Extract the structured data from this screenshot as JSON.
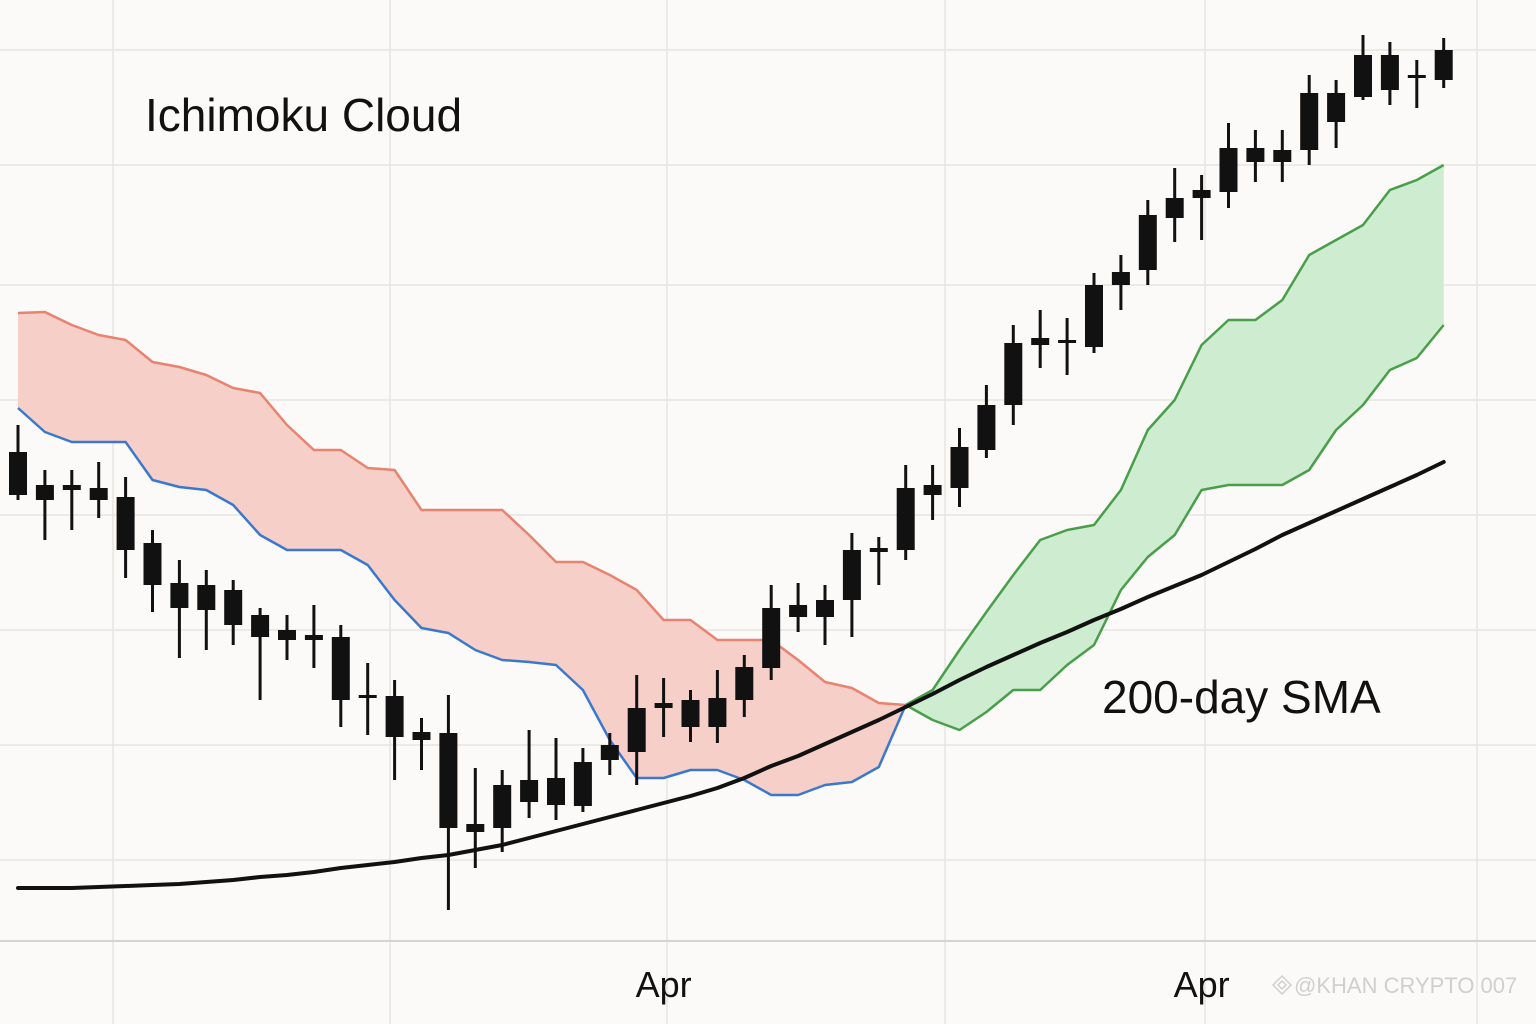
{
  "chart_data": {
    "type": "candlestick",
    "title": "Ichimoku Cloud",
    "annotation": "200-day SMA",
    "watermark": "@KHAN CRYPTO 007",
    "categories": [
      null,
      null,
      null,
      null,
      null,
      null,
      null,
      null,
      null,
      null,
      null,
      null,
      null,
      null,
      null,
      null,
      null,
      null,
      null,
      null,
      null,
      null,
      null,
      null,
      "Apr",
      null,
      null,
      null,
      null,
      null,
      null,
      null,
      null,
      null,
      null,
      null,
      null,
      null,
      null,
      null,
      null,
      null,
      null,
      null,
      "Apr",
      null,
      null,
      null,
      null,
      null,
      null,
      null,
      null,
      null
    ],
    "ylim": [
      0,
      940
    ],
    "candle_color": "#111111",
    "open": [
      488,
      455,
      455,
      452,
      443,
      397,
      357,
      355,
      350,
      325,
      310,
      305,
      303,
      245,
      244,
      208,
      207,
      108,
      112,
      138,
      135,
      134,
      180,
      188,
      232,
      213,
      213,
      240,
      272,
      323,
      323,
      340,
      388,
      390,
      445,
      452,
      490,
      535,
      595,
      597,
      593,
      655,
      670,
      722,
      742,
      748,
      778,
      778,
      790,
      818,
      843,
      850,
      862,
      860
    ],
    "high": [
      515,
      470,
      470,
      478,
      463,
      410,
      380,
      370,
      360,
      332,
      325,
      335,
      315,
      277,
      260,
      222,
      245,
      172,
      170,
      210,
      202,
      192,
      207,
      265,
      262,
      250,
      270,
      285,
      355,
      357,
      355,
      407,
      403,
      475,
      475,
      512,
      555,
      615,
      630,
      622,
      667,
      685,
      740,
      772,
      765,
      817,
      810,
      810,
      865,
      860,
      905,
      898,
      880,
      902
    ],
    "low": [
      440,
      400,
      410,
      422,
      362,
      328,
      282,
      290,
      295,
      240,
      280,
      272,
      213,
      205,
      160,
      170,
      30,
      72,
      88,
      122,
      120,
      128,
      165,
      155,
      203,
      198,
      197,
      223,
      260,
      308,
      295,
      303,
      355,
      380,
      420,
      433,
      482,
      515,
      572,
      565,
      587,
      630,
      655,
      698,
      700,
      732,
      758,
      758,
      775,
      792,
      840,
      835,
      832,
      852
    ],
    "close": [
      445,
      440,
      450,
      440,
      390,
      355,
      332,
      330,
      315,
      303,
      300,
      300,
      240,
      242,
      203,
      200,
      112,
      116,
      155,
      160,
      162,
      178,
      195,
      232,
      237,
      240,
      242,
      273,
      332,
      335,
      340,
      390,
      392,
      452,
      455,
      493,
      535,
      597,
      602,
      600,
      655,
      668,
      725,
      742,
      750,
      792,
      792,
      790,
      847,
      847,
      885,
      885,
      865,
      890
    ],
    "clouds": [
      {
        "fill": "#f6cfc9",
        "upper": {
          "color": "#e8836f",
          "values": [
            627,
            628,
            615,
            605,
            600,
            578,
            573,
            565,
            552,
            547,
            515,
            490,
            490,
            472,
            470,
            430,
            430,
            430,
            430,
            405,
            378,
            378,
            365,
            350,
            320,
            320,
            300,
            300,
            300,
            280,
            258,
            252,
            237,
            235,
            null,
            null,
            null,
            null,
            null,
            null,
            null,
            null,
            null,
            null,
            null,
            null,
            null,
            null,
            null,
            null,
            null,
            null,
            null,
            null
          ]
        },
        "lower": {
          "color": "#3a78d0",
          "values": [
            532,
            508,
            498,
            498,
            498,
            460,
            453,
            450,
            435,
            405,
            390,
            390,
            390,
            375,
            340,
            312,
            307,
            290,
            280,
            278,
            275,
            250,
            200,
            162,
            162,
            170,
            170,
            160,
            145,
            145,
            155,
            158,
            173,
            235,
            null,
            null,
            null,
            null,
            null,
            null,
            null,
            null,
            null,
            null,
            null,
            null,
            null,
            null,
            null,
            null,
            null,
            null,
            null,
            null
          ]
        }
      },
      {
        "fill": "#cdecd0",
        "upper": {
          "color": "#4a9e4a",
          "values": [
            null,
            null,
            null,
            null,
            null,
            null,
            null,
            null,
            null,
            null,
            null,
            null,
            null,
            null,
            null,
            null,
            null,
            null,
            null,
            null,
            null,
            null,
            null,
            null,
            null,
            null,
            null,
            null,
            null,
            null,
            null,
            null,
            null,
            235,
            250,
            290,
            328,
            365,
            400,
            410,
            415,
            450,
            510,
            540,
            595,
            620,
            620,
            640,
            685,
            700,
            715,
            750,
            760,
            775
          ]
        },
        "lower": {
          "color": "#4a9e4a",
          "values": [
            null,
            null,
            null,
            null,
            null,
            null,
            null,
            null,
            null,
            null,
            null,
            null,
            null,
            null,
            null,
            null,
            null,
            null,
            null,
            null,
            null,
            null,
            null,
            null,
            null,
            null,
            null,
            null,
            null,
            null,
            null,
            null,
            null,
            235,
            220,
            210,
            228,
            250,
            250,
            275,
            295,
            350,
            383,
            405,
            450,
            455,
            455,
            455,
            470,
            510,
            535,
            570,
            582,
            615
          ]
        }
      }
    ],
    "sma": {
      "color": "#111111",
      "values": [
        52,
        52,
        52,
        53,
        54,
        55,
        56,
        58,
        60,
        63,
        65,
        68,
        72,
        75,
        78,
        82,
        85,
        90,
        95,
        102,
        109,
        116,
        123,
        130,
        137,
        144,
        152,
        162,
        174,
        184,
        196,
        208,
        220,
        233,
        246,
        260,
        273,
        285,
        297,
        308,
        320,
        331,
        343,
        354,
        365,
        378,
        391,
        405,
        417,
        429,
        441,
        453,
        465,
        478
      ]
    }
  }
}
